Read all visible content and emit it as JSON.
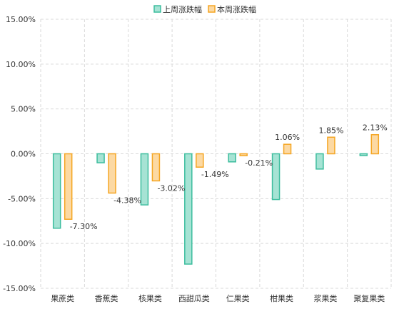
{
  "chart_data": {
    "type": "bar",
    "categories": [
      "果蔗类",
      "香蕉类",
      "核果类",
      "西甜瓜类",
      "仁果类",
      "柑果类",
      "浆果类",
      "聚复果类"
    ],
    "series": [
      {
        "name": "上周涨跌幅",
        "values": [
          -8.3,
          -1.0,
          -5.7,
          -12.3,
          -0.9,
          -5.1,
          -1.7,
          -0.2
        ],
        "color": "#3dbd9e",
        "fill": "#a6e3d4"
      },
      {
        "name": "本周涨跌幅",
        "values": [
          -7.3,
          -4.38,
          -3.02,
          -1.49,
          -0.21,
          1.06,
          1.85,
          2.13
        ],
        "labels": [
          "-7.30%",
          "-4.38%",
          "-3.02%",
          "-1.49%",
          "-0.21%",
          "1.06%",
          "1.85%",
          "2.13%"
        ],
        "color": "#f5a623",
        "fill": "#fcd9a3"
      }
    ],
    "ylim": [
      -15,
      15
    ],
    "yticks": [
      -15,
      -10,
      -5,
      0,
      5,
      10,
      15
    ],
    "ytick_labels": [
      "-15.00%",
      "-10.00%",
      "-5.00%",
      "0.00%",
      "5.00%",
      "10.00%",
      "15.00%"
    ],
    "grid": "dashed",
    "legend_position": "top-center"
  }
}
